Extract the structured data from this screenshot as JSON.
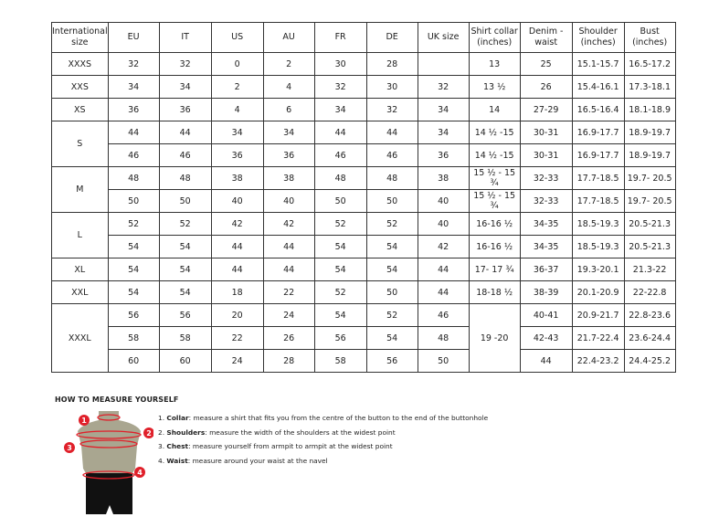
{
  "headers": [
    "International size",
    "EU",
    "IT",
    "US",
    "AU",
    "FR",
    "DE",
    "UK size",
    "Shirt collar (inches)",
    "Denim - waist",
    "Shoulder (inches)",
    "Bust (inches)"
  ],
  "groups": [
    {
      "size": "XXXS",
      "rows": [
        [
          "32",
          "32",
          "0",
          "2",
          "30",
          "28",
          "",
          "13",
          "25",
          "15.1-15.7",
          "16.5-17.2"
        ]
      ]
    },
    {
      "size": "XXS",
      "rows": [
        [
          "34",
          "34",
          "2",
          "4",
          "32",
          "30",
          "32",
          "13 ½",
          "26",
          "15.4-16.1",
          "17.3-18.1"
        ]
      ]
    },
    {
      "size": "XS",
      "rows": [
        [
          "36",
          "36",
          "4",
          "6",
          "34",
          "32",
          "34",
          "14",
          "27-29",
          "16.5-16.4",
          "18.1-18.9"
        ]
      ]
    },
    {
      "size": "S",
      "rows": [
        [
          "44",
          "44",
          "34",
          "34",
          "44",
          "44",
          "34",
          "14 ½ -15",
          "30-31",
          "16.9-17.7",
          "18.9-19.7"
        ],
        [
          "46",
          "46",
          "36",
          "36",
          "46",
          "46",
          "36",
          "14 ½ -15",
          "30-31",
          "16.9-17.7",
          "18.9-19.7"
        ]
      ]
    },
    {
      "size": "M",
      "rows": [
        [
          "48",
          "48",
          "38",
          "38",
          "48",
          "48",
          "38",
          "15 ½ - 15 ¾",
          "32-33",
          "17.7-18.5",
          "19.7- 20.5"
        ],
        [
          "50",
          "50",
          "40",
          "40",
          "50",
          "50",
          "40",
          "15 ½ - 15 ¾",
          "32-33",
          "17.7-18.5",
          "19.7- 20.5"
        ]
      ]
    },
    {
      "size": "L",
      "rows": [
        [
          "52",
          "52",
          "42",
          "42",
          "52",
          "52",
          "40",
          "16-16 ½",
          "34-35",
          "18.5-19.3",
          "20.5-21.3"
        ],
        [
          "54",
          "54",
          "44",
          "44",
          "54",
          "54",
          "42",
          "16-16 ½",
          "34-35",
          "18.5-19.3",
          "20.5-21.3"
        ]
      ]
    },
    {
      "size": "XL",
      "rows": [
        [
          "54",
          "54",
          "44",
          "44",
          "54",
          "54",
          "44",
          "17- 17 ¾",
          "36-37",
          "19.3-20.1",
          "21.3-22"
        ]
      ]
    },
    {
      "size": "XXL",
      "rows": [
        [
          "54",
          "54",
          "18",
          "22",
          "52",
          "50",
          "44",
          "18-18 ½",
          "38-39",
          "20.1-20.9",
          "22-22.8"
        ]
      ]
    },
    {
      "size": "XXXL",
      "collar": "19 -20",
      "rows": [
        [
          "56",
          "56",
          "20",
          "24",
          "54",
          "52",
          "46",
          "",
          "40-41",
          "20.9-21.7",
          "22.8-23.6"
        ],
        [
          "58",
          "58",
          "22",
          "26",
          "56",
          "54",
          "48",
          "",
          "42-43",
          "21.7-22.4",
          "23.6-24.4"
        ],
        [
          "60",
          "60",
          "24",
          "28",
          "58",
          "56",
          "50",
          "",
          "44",
          "22.4-23.2",
          "24.4-25.2"
        ]
      ]
    }
  ],
  "guide": {
    "title": "HOW TO MEASURE YOURSELF",
    "steps": [
      {
        "num": "1.",
        "term": "Collar",
        "text": ": measure a shirt that fits you from the centre of the button to the end of the buttonhole"
      },
      {
        "num": "2.",
        "term": "Shoulders",
        "text": ": measure the width of the shoulders at the widest point"
      },
      {
        "num": "3.",
        "term": "Chest",
        "text": ": measure yourself from armpit to armpit at the widest point"
      },
      {
        "num": "4.",
        "term": "Waist",
        "text": ": measure around your waist at the navel"
      }
    ],
    "markers": [
      "1",
      "2",
      "3",
      "4"
    ],
    "accent": "#e0202a"
  }
}
